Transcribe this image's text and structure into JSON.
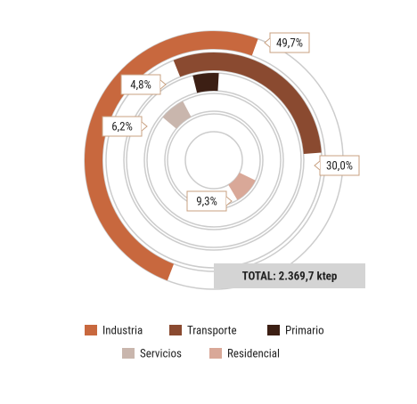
{
  "chart_data": {
    "type": "radial_bar",
    "categories": [
      "Industria",
      "Transporte",
      "Primario",
      "Servicios",
      "Residencial"
    ],
    "values": [
      49.7,
      30.0,
      4.8,
      6.2,
      9.3
    ],
    "value_labels": [
      "49,7%",
      "30,0%",
      "4,8%",
      "6,2%",
      "9,3%"
    ],
    "colors": [
      "#c8683e",
      "#8a4a30",
      "#3c1f14",
      "#c9b6ad",
      "#d9a898"
    ],
    "annotation": "TOTAL: 2.369,7 ktep"
  }
}
